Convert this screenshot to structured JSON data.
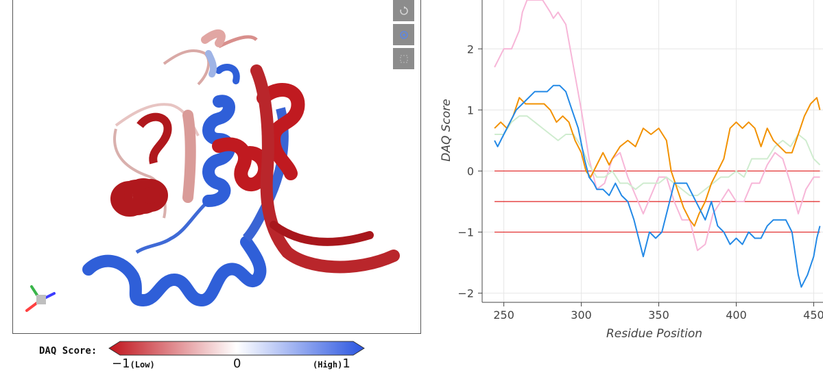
{
  "viewer": {
    "toolbar": [
      {
        "icon": "reset-view-icon",
        "glyph": "refresh"
      },
      {
        "icon": "target-icon",
        "glyph": "focus"
      },
      {
        "icon": "fullscreen-icon",
        "glyph": "expand"
      }
    ]
  },
  "colorbar": {
    "label": "DAQ Score:",
    "min_value": "−1",
    "min_note": "(Low)",
    "mid_value": "0",
    "max_note": "(High)",
    "max_value": "1",
    "low_color": "#c0141c",
    "high_color": "#2a55e0"
  },
  "chart_data": {
    "type": "line",
    "xlabel": "Residue Position",
    "ylabel": "DAQ Score",
    "xlim": [
      236,
      456
    ],
    "ylim": [
      -2.15,
      2.8
    ],
    "x_ticks": [
      250,
      300,
      350,
      400,
      450
    ],
    "y_ticks": [
      -2,
      -1,
      0,
      1,
      2
    ],
    "grid": true,
    "hlines": [
      {
        "y": 0,
        "color": "#e02020"
      },
      {
        "y": -0.5,
        "color": "#e02020"
      },
      {
        "y": -1,
        "color": "#e02020"
      }
    ],
    "series": [
      {
        "color": "#f7b6d8",
        "values": [
          [
            244,
            1.7
          ],
          [
            248,
            1.9
          ],
          [
            250,
            2.0
          ],
          [
            255,
            2.0
          ],
          [
            260,
            2.3
          ],
          [
            262,
            2.6
          ],
          [
            265,
            2.8
          ],
          [
            270,
            2.8
          ],
          [
            275,
            2.8
          ],
          [
            280,
            2.6
          ],
          [
            282,
            2.5
          ],
          [
            285,
            2.6
          ],
          [
            290,
            2.4
          ],
          [
            295,
            1.7
          ],
          [
            300,
            1.0
          ],
          [
            305,
            0.2
          ],
          [
            310,
            -0.3
          ],
          [
            315,
            -0.2
          ],
          [
            320,
            0.2
          ],
          [
            325,
            0.3
          ],
          [
            330,
            -0.1
          ],
          [
            335,
            -0.4
          ],
          [
            340,
            -0.7
          ],
          [
            345,
            -0.4
          ],
          [
            350,
            -0.1
          ],
          [
            355,
            -0.1
          ],
          [
            360,
            -0.5
          ],
          [
            365,
            -0.8
          ],
          [
            370,
            -0.8
          ],
          [
            375,
            -1.3
          ],
          [
            380,
            -1.2
          ],
          [
            385,
            -0.7
          ],
          [
            390,
            -0.5
          ],
          [
            395,
            -0.3
          ],
          [
            400,
            -0.5
          ],
          [
            405,
            -0.5
          ],
          [
            410,
            -0.2
          ],
          [
            415,
            -0.2
          ],
          [
            420,
            0.1
          ],
          [
            425,
            0.3
          ],
          [
            430,
            0.2
          ],
          [
            435,
            -0.2
          ],
          [
            440,
            -0.7
          ],
          [
            445,
            -0.3
          ],
          [
            450,
            -0.1
          ],
          [
            454,
            -0.1
          ]
        ]
      },
      {
        "color": "#cfeccf",
        "values": [
          [
            244,
            0.6
          ],
          [
            250,
            0.6
          ],
          [
            255,
            0.8
          ],
          [
            260,
            0.9
          ],
          [
            265,
            0.9
          ],
          [
            270,
            0.8
          ],
          [
            275,
            0.7
          ],
          [
            280,
            0.6
          ],
          [
            285,
            0.5
          ],
          [
            290,
            0.6
          ],
          [
            295,
            0.6
          ],
          [
            300,
            0.4
          ],
          [
            305,
            0.1
          ],
          [
            310,
            -0.1
          ],
          [
            315,
            -0.1
          ],
          [
            320,
            0.0
          ],
          [
            325,
            -0.2
          ],
          [
            330,
            -0.2
          ],
          [
            335,
            -0.3
          ],
          [
            340,
            -0.2
          ],
          [
            345,
            -0.2
          ],
          [
            350,
            -0.2
          ],
          [
            355,
            -0.1
          ],
          [
            360,
            -0.2
          ],
          [
            365,
            -0.3
          ],
          [
            370,
            -0.4
          ],
          [
            375,
            -0.4
          ],
          [
            380,
            -0.3
          ],
          [
            385,
            -0.2
          ],
          [
            390,
            -0.1
          ],
          [
            395,
            -0.1
          ],
          [
            400,
            0.0
          ],
          [
            405,
            -0.1
          ],
          [
            410,
            0.2
          ],
          [
            415,
            0.2
          ],
          [
            420,
            0.2
          ],
          [
            425,
            0.4
          ],
          [
            430,
            0.5
          ],
          [
            435,
            0.4
          ],
          [
            440,
            0.6
          ],
          [
            445,
            0.5
          ],
          [
            450,
            0.2
          ],
          [
            454,
            0.1
          ]
        ]
      },
      {
        "color": "#f29100",
        "values": [
          [
            244,
            0.7
          ],
          [
            248,
            0.8
          ],
          [
            252,
            0.7
          ],
          [
            256,
            0.9
          ],
          [
            260,
            1.2
          ],
          [
            264,
            1.1
          ],
          [
            268,
            1.1
          ],
          [
            272,
            1.1
          ],
          [
            276,
            1.1
          ],
          [
            280,
            1.0
          ],
          [
            284,
            0.8
          ],
          [
            288,
            0.9
          ],
          [
            292,
            0.8
          ],
          [
            296,
            0.5
          ],
          [
            300,
            0.3
          ],
          [
            303,
            0.0
          ],
          [
            306,
            -0.1
          ],
          [
            308,
            0.0
          ],
          [
            310,
            0.1
          ],
          [
            314,
            0.3
          ],
          [
            318,
            0.1
          ],
          [
            320,
            0.2
          ],
          [
            325,
            0.4
          ],
          [
            330,
            0.5
          ],
          [
            335,
            0.4
          ],
          [
            340,
            0.7
          ],
          [
            345,
            0.6
          ],
          [
            350,
            0.7
          ],
          [
            355,
            0.5
          ],
          [
            358,
            0.0
          ],
          [
            362,
            -0.3
          ],
          [
            366,
            -0.6
          ],
          [
            370,
            -0.8
          ],
          [
            373,
            -0.9
          ],
          [
            376,
            -0.7
          ],
          [
            380,
            -0.5
          ],
          [
            384,
            -0.2
          ],
          [
            388,
            0.0
          ],
          [
            392,
            0.2
          ],
          [
            396,
            0.7
          ],
          [
            400,
            0.8
          ],
          [
            404,
            0.7
          ],
          [
            408,
            0.8
          ],
          [
            412,
            0.7
          ],
          [
            416,
            0.4
          ],
          [
            420,
            0.7
          ],
          [
            424,
            0.5
          ],
          [
            428,
            0.4
          ],
          [
            432,
            0.3
          ],
          [
            436,
            0.3
          ],
          [
            440,
            0.6
          ],
          [
            444,
            0.9
          ],
          [
            448,
            1.1
          ],
          [
            452,
            1.2
          ],
          [
            454,
            1.0
          ]
        ]
      },
      {
        "color": "#2389e6",
        "values": [
          [
            244,
            0.5
          ],
          [
            246,
            0.4
          ],
          [
            250,
            0.6
          ],
          [
            254,
            0.8
          ],
          [
            258,
            1.0
          ],
          [
            262,
            1.1
          ],
          [
            266,
            1.2
          ],
          [
            270,
            1.3
          ],
          [
            274,
            1.3
          ],
          [
            278,
            1.3
          ],
          [
            282,
            1.4
          ],
          [
            286,
            1.4
          ],
          [
            290,
            1.3
          ],
          [
            294,
            1.0
          ],
          [
            298,
            0.7
          ],
          [
            302,
            0.2
          ],
          [
            305,
            -0.1
          ],
          [
            308,
            -0.2
          ],
          [
            310,
            -0.3
          ],
          [
            314,
            -0.3
          ],
          [
            318,
            -0.4
          ],
          [
            322,
            -0.2
          ],
          [
            326,
            -0.4
          ],
          [
            330,
            -0.5
          ],
          [
            334,
            -0.8
          ],
          [
            338,
            -1.2
          ],
          [
            340,
            -1.4
          ],
          [
            344,
            -1.0
          ],
          [
            348,
            -1.1
          ],
          [
            352,
            -1.0
          ],
          [
            356,
            -0.6
          ],
          [
            360,
            -0.2
          ],
          [
            364,
            -0.2
          ],
          [
            368,
            -0.2
          ],
          [
            372,
            -0.4
          ],
          [
            376,
            -0.6
          ],
          [
            380,
            -0.8
          ],
          [
            384,
            -0.5
          ],
          [
            388,
            -0.9
          ],
          [
            392,
            -1.0
          ],
          [
            396,
            -1.2
          ],
          [
            400,
            -1.1
          ],
          [
            404,
            -1.2
          ],
          [
            408,
            -1.0
          ],
          [
            412,
            -1.1
          ],
          [
            416,
            -1.1
          ],
          [
            420,
            -0.9
          ],
          [
            424,
            -0.8
          ],
          [
            428,
            -0.8
          ],
          [
            432,
            -0.8
          ],
          [
            436,
            -1.0
          ],
          [
            440,
            -1.7
          ],
          [
            442,
            -1.9
          ],
          [
            446,
            -1.7
          ],
          [
            450,
            -1.4
          ],
          [
            452,
            -1.1
          ],
          [
            454,
            -0.9
          ]
        ]
      }
    ]
  }
}
